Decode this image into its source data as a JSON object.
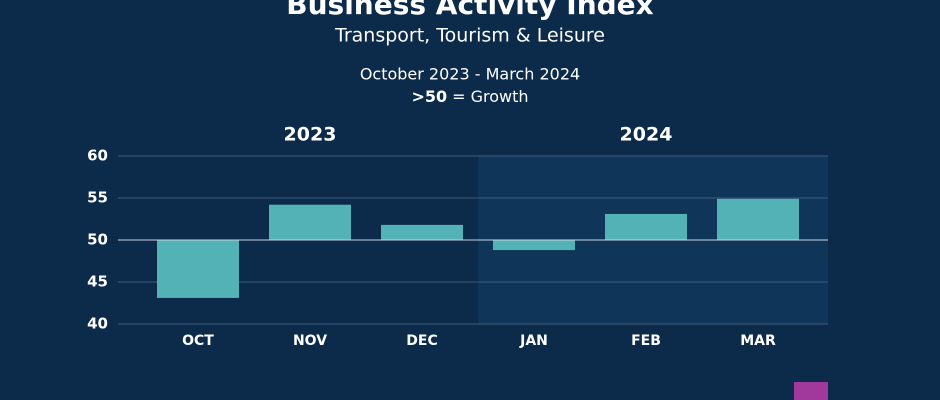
{
  "chart_data": {
    "type": "bar",
    "title": "Business Activity Index",
    "subtitle": "Transport, Tourism & Leisure",
    "period": "October 2023 - March 2024",
    "note_bold": ">50",
    "note_rest": "= Growth",
    "categories": [
      "OCT",
      "NOV",
      "DEC",
      "JAN",
      "FEB",
      "MAR"
    ],
    "values": [
      43.1,
      54.2,
      51.8,
      48.8,
      53.1,
      54.9
    ],
    "baseline": 50,
    "color": "#52b2b6",
    "groups": [
      {
        "label": "2023",
        "count": 3,
        "shaded": false
      },
      {
        "label": "2024",
        "count": 3,
        "shaded": true
      }
    ],
    "ylim": [
      40,
      60
    ],
    "yticks": [
      40,
      45,
      50,
      55,
      60
    ],
    "grid": true
  }
}
